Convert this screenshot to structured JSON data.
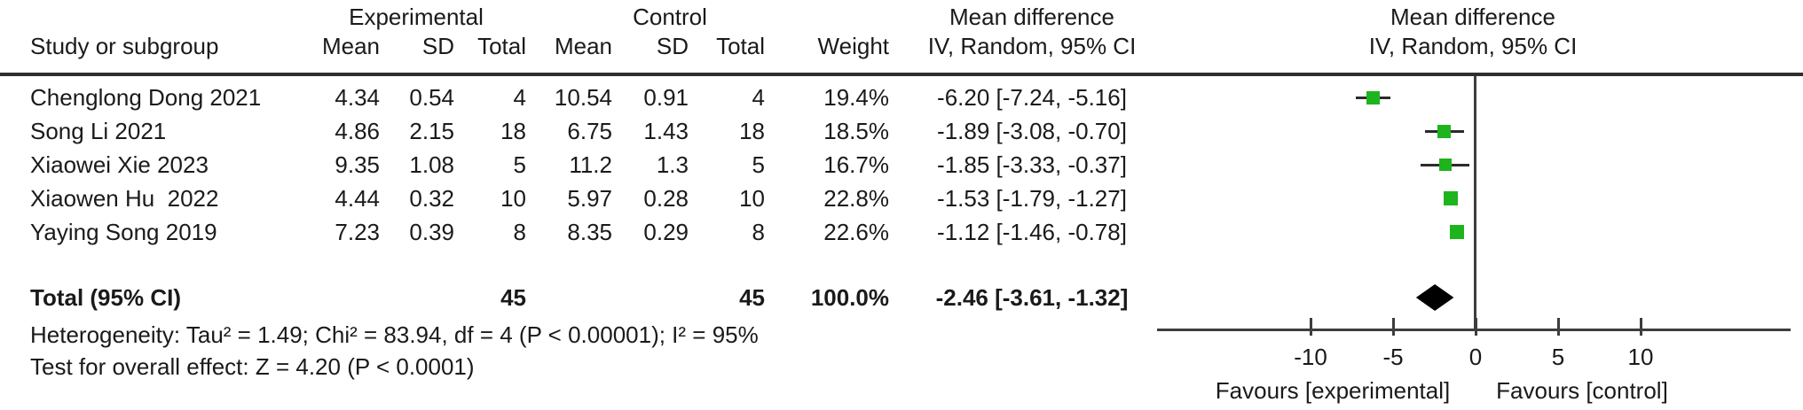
{
  "headers": {
    "study": "Study or subgroup",
    "experimental": "Experimental",
    "control": "Control",
    "mean": "Mean",
    "sd": "SD",
    "total": "Total",
    "weight": "Weight",
    "md_line1": "Mean difference",
    "md_line2": "IV, Random, 95% CI"
  },
  "rows": [
    {
      "study": "Chenglong Dong 2021",
      "exp_mean": "4.34",
      "exp_sd": "0.54",
      "exp_total": "4",
      "ctrl_mean": "10.54",
      "ctrl_sd": "0.91",
      "ctrl_total": "4",
      "weight": "19.4%",
      "ci": "-6.20 [-7.24, -5.16]"
    },
    {
      "study": "Song Li 2021",
      "exp_mean": "4.86",
      "exp_sd": "2.15",
      "exp_total": "18",
      "ctrl_mean": "6.75",
      "ctrl_sd": "1.43",
      "ctrl_total": "18",
      "weight": "18.5%",
      "ci": "-1.89 [-3.08, -0.70]"
    },
    {
      "study": "Xiaowei Xie 2023",
      "exp_mean": "9.35",
      "exp_sd": "1.08",
      "exp_total": "5",
      "ctrl_mean": "11.2",
      "ctrl_sd": "1.3",
      "ctrl_total": "5",
      "weight": "16.7%",
      "ci": "-1.85 [-3.33, -0.37]"
    },
    {
      "study": "Xiaowen Hu  2022",
      "exp_mean": "4.44",
      "exp_sd": "0.32",
      "exp_total": "10",
      "ctrl_mean": "5.97",
      "ctrl_sd": "0.28",
      "ctrl_total": "10",
      "weight": "22.8%",
      "ci": "-1.53 [-1.79, -1.27]"
    },
    {
      "study": "Yaying Song 2019",
      "exp_mean": "7.23",
      "exp_sd": "0.39",
      "exp_total": "8",
      "ctrl_mean": "8.35",
      "ctrl_sd": "0.29",
      "ctrl_total": "8",
      "weight": "22.6%",
      "ci": "-1.12 [-1.46, -0.78]"
    }
  ],
  "total_row": {
    "label": "Total (95% CI)",
    "exp_total": "45",
    "ctrl_total": "45",
    "weight": "100.0%",
    "ci": "-2.46 [-3.61, -1.32]"
  },
  "footnotes": {
    "heterogeneity": "Heterogeneity: Tau² = 1.49; Chi² = 83.94, df = 4 (P < 0.00001); I² = 95%",
    "overall_effect": "Test for overall effect: Z = 4.20 (P < 0.0001)"
  },
  "chart_data": {
    "type": "scatter",
    "subtype": "forest-plot",
    "title": "Mean difference — IV, Random, 95% CI",
    "xlabel": "Mean difference",
    "x_ticks": [
      -10,
      -5,
      0,
      5,
      10
    ],
    "axis_range": [
      -19.3,
      19.1
    ],
    "grid": false,
    "favours_left": "Favours [experimental]",
    "favours_right": "Favours [control]",
    "marker_color": "#1db41d",
    "ci_line_color": "#2b2b2b",
    "diamond_color": "#000000",
    "studies": [
      {
        "name": "Chenglong Dong 2021",
        "md": -6.2,
        "ci_low": -7.24,
        "ci_high": -5.16,
        "weight_pct": 19.4
      },
      {
        "name": "Song Li 2021",
        "md": -1.89,
        "ci_low": -3.08,
        "ci_high": -0.7,
        "weight_pct": 18.5
      },
      {
        "name": "Xiaowei Xie 2023",
        "md": -1.85,
        "ci_low": -3.33,
        "ci_high": -0.37,
        "weight_pct": 16.7
      },
      {
        "name": "Xiaowen Hu 2022",
        "md": -1.53,
        "ci_low": -1.79,
        "ci_high": -1.27,
        "weight_pct": 22.8
      },
      {
        "name": "Yaying Song 2019",
        "md": -1.12,
        "ci_low": -1.46,
        "ci_high": -0.78,
        "weight_pct": 22.6
      }
    ],
    "total_diamond": {
      "md": -2.46,
      "ci_low": -3.61,
      "ci_high": -1.32
    }
  }
}
